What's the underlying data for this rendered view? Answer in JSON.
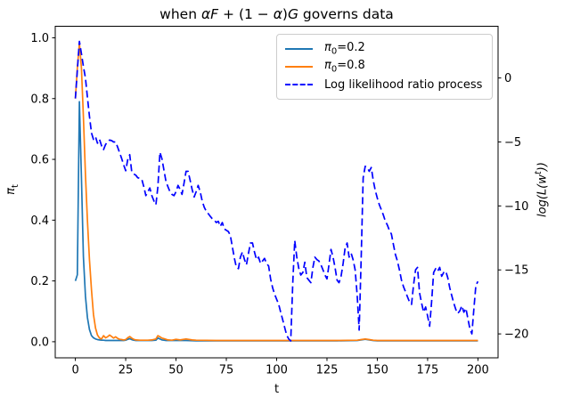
{
  "title": {
    "full": "when αF + (1 − α)G governs data",
    "w1": "when ",
    "m1": "αF",
    "m2": " + (1 − ",
    "m3": "α",
    "m4": ")",
    "m5": "G",
    "w2": " governs data"
  },
  "legend": {
    "items": [
      {
        "sym": "π",
        "sub": "0",
        "rest": "=0.2",
        "color": "#1f77b4",
        "style": "solid"
      },
      {
        "sym": "π",
        "sub": "0",
        "rest": "=0.8",
        "color": "#ff7f0e",
        "style": "solid"
      },
      {
        "label": "Log likelihood ratio process",
        "color": "#0000ff",
        "style": "dashed"
      }
    ],
    "position": "upper right"
  },
  "chart_data": {
    "type": "line",
    "title": "when αF + (1 − α)G governs data",
    "xlabel": "t",
    "ylabel_left": "π_t",
    "ylabel_right": "log(L(w^t))",
    "ylabel_left_parts": {
      "sym": "π",
      "sub": "t"
    },
    "ylabel_right_parts": {
      "pre": "log(L(w",
      "sup": "t",
      "post": "))"
    },
    "xlim": [
      -10,
      210
    ],
    "ylim_left": [
      -0.053,
      1.038
    ],
    "ylim_right": [
      -21.87,
      4.04
    ],
    "x_ticks": {
      "values": [
        0,
        25,
        50,
        75,
        100,
        125,
        150,
        175,
        200
      ],
      "labels": [
        "0",
        "25",
        "50",
        "75",
        "100",
        "125",
        "150",
        "175",
        "200"
      ]
    },
    "y_ticks_left": {
      "values": [
        0.0,
        0.2,
        0.4,
        0.6,
        0.8,
        1.0
      ],
      "labels": [
        "0.0",
        "0.2",
        "0.4",
        "0.6",
        "0.8",
        "1.0"
      ]
    },
    "y_ticks_right": {
      "values": [
        0,
        -5,
        -10,
        -15,
        -20
      ],
      "labels": [
        "0",
        "−5",
        "−10",
        "−15",
        "−20"
      ]
    },
    "grid": false,
    "series": [
      {
        "name": "π0=0.2",
        "axis": "left",
        "color": "#1f77b4",
        "dash": false,
        "x": [
          0,
          1,
          2,
          3,
          4,
          5,
          6,
          7,
          8,
          9,
          10,
          11,
          12,
          13,
          14,
          15,
          16,
          17,
          18,
          19,
          20,
          22,
          24,
          25,
          26,
          27,
          28,
          29,
          30,
          32,
          34,
          36,
          38,
          40,
          41,
          42,
          43,
          44,
          45,
          46,
          48,
          50,
          55,
          60,
          70,
          80,
          90,
          100,
          110,
          120,
          130,
          140,
          142,
          144,
          146,
          148,
          150,
          155,
          160,
          170,
          180,
          190,
          200
        ],
        "y": [
          0.2,
          0.22,
          0.79,
          0.54,
          0.28,
          0.15,
          0.08,
          0.04,
          0.02,
          0.013,
          0.009,
          0.007,
          0.006,
          0.005,
          0.005,
          0.004,
          0.004,
          0.004,
          0.004,
          0.004,
          0.004,
          0.004,
          0.004,
          0.005,
          0.008,
          0.01,
          0.007,
          0.005,
          0.004,
          0.004,
          0.004,
          0.004,
          0.004,
          0.005,
          0.012,
          0.009,
          0.006,
          0.005,
          0.004,
          0.004,
          0.004,
          0.004,
          0.004,
          0.003,
          0.003,
          0.003,
          0.003,
          0.003,
          0.003,
          0.003,
          0.003,
          0.004,
          0.006,
          0.008,
          0.006,
          0.004,
          0.003,
          0.003,
          0.003,
          0.003,
          0.003,
          0.003,
          0.003
        ]
      },
      {
        "name": "π0=0.8",
        "axis": "left",
        "color": "#ff7f0e",
        "dash": false,
        "x": [
          0,
          1,
          2,
          3,
          4,
          5,
          6,
          7,
          8,
          9,
          10,
          11,
          12,
          13,
          14,
          15,
          16,
          17,
          18,
          19,
          20,
          21,
          22,
          23,
          24,
          25,
          26,
          27,
          28,
          29,
          30,
          32,
          34,
          36,
          38,
          40,
          41,
          42,
          43,
          44,
          45,
          46,
          48,
          50,
          52,
          55,
          58,
          60,
          70,
          80,
          90,
          100,
          110,
          120,
          130,
          140,
          142,
          144,
          146,
          148,
          150,
          155,
          160,
          170,
          180,
          190,
          200
        ],
        "y": [
          0.8,
          0.9,
          0.982,
          0.9,
          0.74,
          0.55,
          0.4,
          0.27,
          0.17,
          0.09,
          0.045,
          0.022,
          0.012,
          0.009,
          0.02,
          0.013,
          0.016,
          0.022,
          0.017,
          0.012,
          0.016,
          0.011,
          0.008,
          0.007,
          0.006,
          0.007,
          0.013,
          0.017,
          0.012,
          0.008,
          0.006,
          0.005,
          0.005,
          0.005,
          0.006,
          0.009,
          0.02,
          0.016,
          0.012,
          0.01,
          0.008,
          0.006,
          0.005,
          0.008,
          0.006,
          0.009,
          0.006,
          0.005,
          0.004,
          0.004,
          0.004,
          0.004,
          0.004,
          0.004,
          0.004,
          0.005,
          0.007,
          0.009,
          0.007,
          0.005,
          0.004,
          0.004,
          0.004,
          0.004,
          0.004,
          0.004,
          0.004
        ]
      },
      {
        "name": "Log likelihood ratio process",
        "axis": "right",
        "color": "#0000ff",
        "dash": true,
        "x_start": 0,
        "x_step": 1,
        "y": [
          -1.6,
          0.6,
          2.86,
          1.9,
          0.9,
          0.0,
          -1.5,
          -3.0,
          -4.3,
          -4.8,
          -4.6,
          -5.1,
          -4.8,
          -5.3,
          -5.6,
          -5.2,
          -5.0,
          -4.85,
          -4.9,
          -5.0,
          -5.0,
          -5.4,
          -5.85,
          -6.3,
          -6.8,
          -7.25,
          -6.4,
          -6.0,
          -7.3,
          -7.5,
          -7.6,
          -7.8,
          -7.85,
          -7.9,
          -8.5,
          -9.2,
          -8.9,
          -8.6,
          -9.2,
          -9.6,
          -9.9,
          -8.5,
          -5.8,
          -6.3,
          -7.2,
          -8.1,
          -8.5,
          -8.9,
          -9.1,
          -9.2,
          -8.9,
          -8.4,
          -8.7,
          -9.1,
          -8.2,
          -7.3,
          -7.3,
          -8.0,
          -8.7,
          -9.3,
          -8.9,
          -8.4,
          -8.9,
          -9.6,
          -10.1,
          -10.4,
          -10.6,
          -10.8,
          -11.0,
          -11.1,
          -11.3,
          -11.2,
          -11.6,
          -11.3,
          -11.8,
          -11.9,
          -12.0,
          -12.3,
          -13.2,
          -14.1,
          -14.8,
          -14.9,
          -14.0,
          -13.6,
          -14.2,
          -14.6,
          -13.7,
          -12.9,
          -12.9,
          -13.6,
          -14.2,
          -14.0,
          -14.5,
          -14.3,
          -14.1,
          -14.5,
          -14.7,
          -15.7,
          -16.4,
          -16.9,
          -17.3,
          -17.7,
          -18.3,
          -18.9,
          -19.5,
          -20.1,
          -20.4,
          -20.55,
          -16.0,
          -12.7,
          -14.0,
          -14.9,
          -15.4,
          -15.2,
          -14.4,
          -15.6,
          -15.8,
          -16.0,
          -14.8,
          -14.0,
          -14.2,
          -14.3,
          -14.6,
          -15.0,
          -15.4,
          -15.7,
          -14.6,
          -13.4,
          -14.0,
          -14.8,
          -15.8,
          -16.0,
          -15.5,
          -14.5,
          -13.3,
          -12.9,
          -14.0,
          -13.7,
          -14.2,
          -15.0,
          -17.0,
          -19.7,
          -14.0,
          -7.8,
          -6.9,
          -7.0,
          -7.3,
          -7.0,
          -8.0,
          -8.8,
          -9.4,
          -9.9,
          -10.3,
          -10.7,
          -11.2,
          -11.5,
          -11.9,
          -12.2,
          -13.0,
          -13.8,
          -14.3,
          -15.0,
          -15.8,
          -16.3,
          -16.7,
          -17.1,
          -17.5,
          -17.7,
          -16.2,
          -15.0,
          -14.8,
          -16.8,
          -17.6,
          -18.3,
          -17.9,
          -18.6,
          -19.4,
          -17.5,
          -15.2,
          -14.9,
          -15.1,
          -14.8,
          -15.5,
          -15.2,
          -15.1,
          -15.6,
          -16.4,
          -17.0,
          -17.6,
          -18.1,
          -18.4,
          -18.2,
          -17.8,
          -18.3,
          -18.0,
          -18.8,
          -19.6,
          -20.0,
          -18.0,
          -16.2,
          -15.9
        ]
      }
    ]
  },
  "colors": {
    "series_pi02": "#1f77b4",
    "series_pi08": "#ff7f0e",
    "series_llr": "#0000ff",
    "frame": "#000000",
    "legend_border": "#cccccc"
  }
}
